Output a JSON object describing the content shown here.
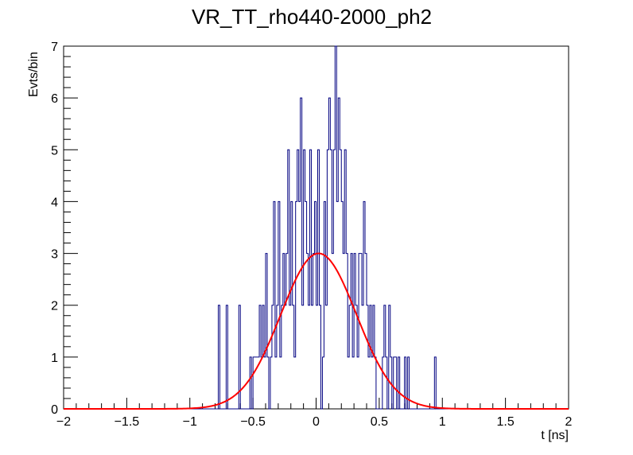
{
  "chart_data": {
    "type": "histogram",
    "title": "VR_TT_rho440-2000_ph2",
    "xlabel": "t [ns]",
    "ylabel": "Evts/bin",
    "xlim": [
      -2,
      2
    ],
    "ylim": [
      0,
      7
    ],
    "grid": false,
    "bin_width": 0.0125,
    "x_ticks": [
      -2,
      -1.5,
      -1,
      -0.5,
      0,
      0.5,
      1,
      1.5,
      2
    ],
    "x_tick_labels": [
      "−2",
      "−1.5",
      "−1",
      "−0.5",
      "0",
      "0.5",
      "1",
      "1.5",
      "2"
    ],
    "y_ticks": [
      0,
      1,
      2,
      3,
      4,
      5,
      6,
      7
    ],
    "y_tick_labels": [
      "0",
      "1",
      "2",
      "3",
      "4",
      "5",
      "6",
      "7"
    ],
    "series": [
      {
        "kind": "histogram",
        "color": "#000080",
        "bins": [
          [
            -0.775,
            2
          ],
          [
            -0.7625,
            0
          ],
          [
            -0.7125,
            2
          ],
          [
            -0.7,
            0
          ],
          [
            -0.6125,
            2
          ],
          [
            -0.6,
            0
          ],
          [
            -0.525,
            1
          ],
          [
            -0.5125,
            0
          ],
          [
            -0.5,
            1
          ],
          [
            -0.4875,
            1
          ],
          [
            -0.475,
            1
          ],
          [
            -0.4625,
            1
          ],
          [
            -0.45,
            2
          ],
          [
            -0.4375,
            1
          ],
          [
            -0.425,
            2
          ],
          [
            -0.4125,
            1
          ],
          [
            -0.4,
            3
          ],
          [
            -0.3875,
            1
          ],
          [
            -0.375,
            0
          ],
          [
            -0.3625,
            1
          ],
          [
            -0.35,
            2
          ],
          [
            -0.3375,
            4
          ],
          [
            -0.325,
            1
          ],
          [
            -0.3125,
            2
          ],
          [
            -0.3,
            4
          ],
          [
            -0.2875,
            1
          ],
          [
            -0.275,
            2
          ],
          [
            -0.2625,
            3
          ],
          [
            -0.25,
            2
          ],
          [
            -0.2375,
            3
          ],
          [
            -0.225,
            5
          ],
          [
            -0.2125,
            2
          ],
          [
            -0.2,
            4
          ],
          [
            -0.1875,
            2
          ],
          [
            -0.175,
            1
          ],
          [
            -0.1625,
            4
          ],
          [
            -0.15,
            5
          ],
          [
            -0.1375,
            4
          ],
          [
            -0.125,
            6
          ],
          [
            -0.1125,
            2
          ],
          [
            -0.1,
            5
          ],
          [
            -0.0875,
            4
          ],
          [
            -0.075,
            3
          ],
          [
            -0.0625,
            2
          ],
          [
            -0.05,
            5
          ],
          [
            -0.0375,
            2
          ],
          [
            -0.025,
            3
          ],
          [
            -0.0125,
            4
          ],
          [
            0.0,
            2
          ],
          [
            0.0125,
            5
          ],
          [
            0.025,
            2
          ],
          [
            0.0375,
            0
          ],
          [
            0.05,
            1
          ],
          [
            0.0625,
            4
          ],
          [
            0.075,
            2
          ],
          [
            0.0875,
            5
          ],
          [
            0.1,
            6
          ],
          [
            0.1125,
            5
          ],
          [
            0.125,
            3
          ],
          [
            0.1375,
            5
          ],
          [
            0.15,
            7
          ],
          [
            0.1625,
            4
          ],
          [
            0.175,
            6
          ],
          [
            0.1875,
            5
          ],
          [
            0.2,
            4
          ],
          [
            0.2125,
            3
          ],
          [
            0.225,
            5
          ],
          [
            0.2375,
            3
          ],
          [
            0.25,
            1
          ],
          [
            0.2625,
            2
          ],
          [
            0.275,
            3
          ],
          [
            0.2875,
            1
          ],
          [
            0.3,
            3
          ],
          [
            0.3125,
            2
          ],
          [
            0.325,
            1
          ],
          [
            0.3375,
            3
          ],
          [
            0.35,
            3
          ],
          [
            0.3625,
            2
          ],
          [
            0.375,
            4
          ],
          [
            0.3875,
            3
          ],
          [
            0.4,
            2
          ],
          [
            0.4125,
            1
          ],
          [
            0.425,
            2
          ],
          [
            0.4375,
            1
          ],
          [
            0.45,
            2
          ],
          [
            0.4625,
            1
          ],
          [
            0.475,
            0
          ],
          [
            0.525,
            1
          ],
          [
            0.5375,
            2
          ],
          [
            0.55,
            1
          ],
          [
            0.5625,
            0
          ],
          [
            0.575,
            2
          ],
          [
            0.5875,
            1
          ],
          [
            0.6,
            0
          ],
          [
            0.6125,
            1
          ],
          [
            0.625,
            1
          ],
          [
            0.6375,
            0
          ],
          [
            0.65,
            1
          ],
          [
            0.6625,
            0
          ],
          [
            0.7,
            1
          ],
          [
            0.7125,
            0
          ],
          [
            0.725,
            1
          ],
          [
            0.7375,
            0
          ],
          [
            0.9375,
            1
          ],
          [
            0.95,
            0
          ]
        ]
      },
      {
        "kind": "fit",
        "color": "#ff0000",
        "function": "gaus",
        "amplitude": 3.0,
        "mean": 0.02,
        "sigma": 0.3
      }
    ]
  }
}
